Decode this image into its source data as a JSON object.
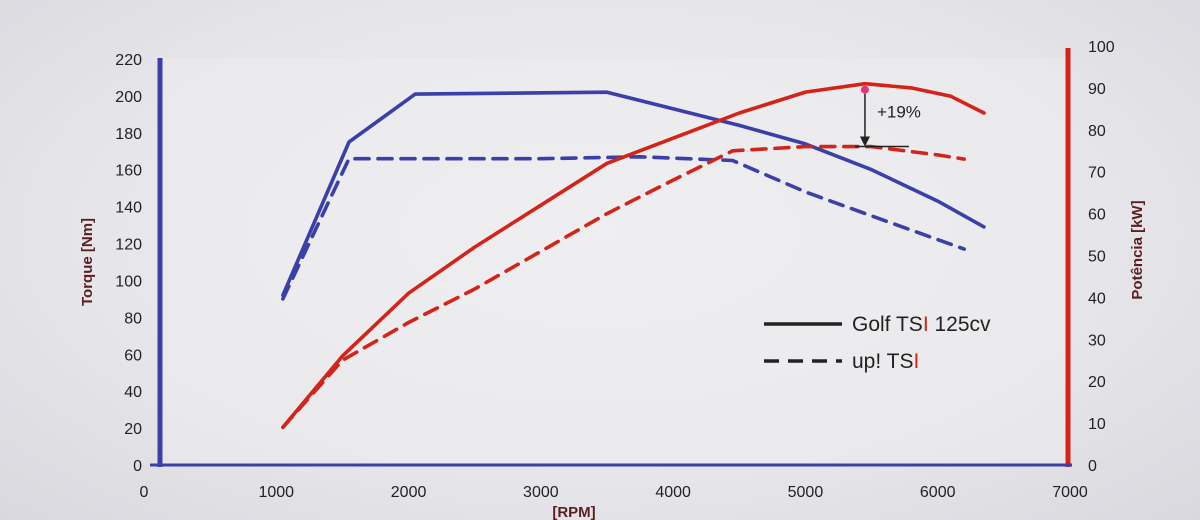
{
  "chart_data": {
    "type": "line",
    "xlabel": "[RPM]",
    "x_ticks": [
      "0",
      "1000",
      "2000",
      "3000",
      "4000",
      "5000",
      "6000",
      "7000"
    ],
    "xlim": [
      0,
      7000
    ],
    "y_left": {
      "label": "Torque [Nm]",
      "lim": [
        0,
        220
      ],
      "ticks": [
        "0",
        "20",
        "40",
        "60",
        "80",
        "100",
        "120",
        "140",
        "160",
        "180",
        "200",
        "220"
      ]
    },
    "y_right": {
      "label": "Potência [kW]",
      "lim": [
        0,
        100
      ],
      "ticks": [
        "0",
        "10",
        "20",
        "30",
        "40",
        "50",
        "60",
        "70",
        "80",
        "90",
        "100"
      ]
    },
    "legend": {
      "placement": "center-right",
      "entries": [
        {
          "style": "solid",
          "text_main": "Golf TS",
          "text_accent": "I",
          "text_rest": " 125cv"
        },
        {
          "style": "dashed",
          "text_main": "up! TS",
          "text_accent": "I",
          "text_rest": ""
        }
      ]
    },
    "annotation": {
      "text": "+19%",
      "x": 5450,
      "from_kw": 76,
      "to_kw": 91
    },
    "series": [
      {
        "axis": "left",
        "style": "solid",
        "color": "#3b3fa8",
        "x": [
          1050,
          1550,
          2050,
          3500,
          4500,
          5000,
          5500,
          6000,
          6350
        ],
        "values": [
          92,
          175,
          201,
          202,
          184,
          174,
          160,
          143,
          129
        ]
      },
      {
        "axis": "left",
        "style": "dashed",
        "color": "#3b3fa8",
        "x": [
          1050,
          1550,
          2000,
          3000,
          3750,
          4450,
          5000,
          5500,
          6200
        ],
        "values": [
          90,
          166,
          166,
          166,
          167,
          165,
          148,
          135,
          117
        ]
      },
      {
        "axis": "right",
        "style": "solid",
        "color": "#d42318",
        "x": [
          1050,
          1500,
          2000,
          2500,
          3000,
          3500,
          4000,
          4500,
          5000,
          5450,
          5800,
          6100,
          6350
        ],
        "values": [
          9,
          26,
          41,
          52,
          62,
          72,
          78,
          84,
          89,
          91,
          90,
          88,
          84
        ]
      },
      {
        "axis": "right",
        "style": "dashed",
        "color": "#d42318",
        "x": [
          1050,
          1500,
          2000,
          2500,
          3000,
          3500,
          4000,
          4450,
          5000,
          5500,
          6000,
          6200
        ],
        "values": [
          9,
          25,
          34,
          42,
          51,
          60,
          68,
          75,
          76,
          76,
          74,
          73
        ]
      }
    ]
  }
}
